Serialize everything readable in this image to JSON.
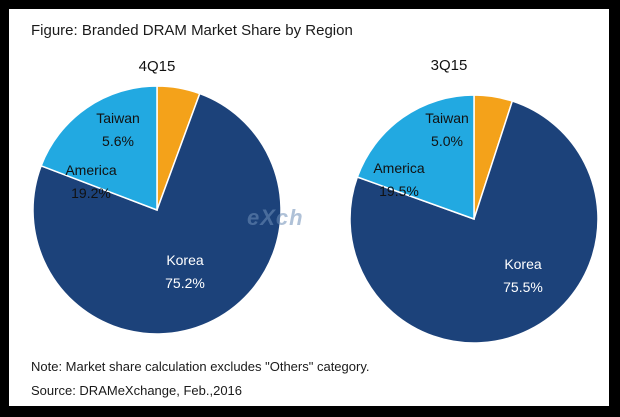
{
  "figure": {
    "title": "Figure: Branded DRAM Market Share by Region",
    "note": "Note: Market share calculation excludes \"Others\" category.",
    "source": "Source: DRAMeXchange, Feb.,2016",
    "watermark": "eXch"
  },
  "colors": {
    "Korea": "#1c427a",
    "America": "#22a9e1",
    "Taiwan": "#f4a21a"
  },
  "chart_data": [
    {
      "type": "pie",
      "title": "4Q15",
      "slices": [
        {
          "name": "Korea",
          "value": 75.2,
          "label": "75.2%"
        },
        {
          "name": "America",
          "value": 19.2,
          "label": "19.2%"
        },
        {
          "name": "Taiwan",
          "value": 5.6,
          "label": "5.6%"
        }
      ]
    },
    {
      "type": "pie",
      "title": "3Q15",
      "slices": [
        {
          "name": "Korea",
          "value": 75.5,
          "label": "75.5%"
        },
        {
          "name": "America",
          "value": 19.5,
          "label": "19.5%"
        },
        {
          "name": "Taiwan",
          "value": 5.0,
          "label": "5.0%"
        }
      ]
    }
  ]
}
